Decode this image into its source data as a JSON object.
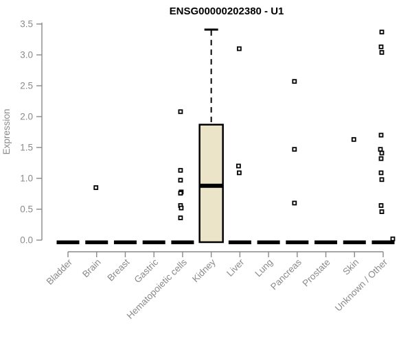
{
  "page": {
    "background": "#ffffff"
  },
  "chart_data": {
    "type": "boxplot",
    "title": "ENSG00000202380 - U1",
    "ylabel": "Expression",
    "xlabel": "",
    "ylim": [
      0.0,
      3.5
    ],
    "yticks": [
      0.0,
      0.5,
      1.0,
      1.5,
      2.0,
      2.5,
      3.0,
      3.5
    ],
    "ytick_labels": [
      "0.0",
      "0.5",
      "1.0",
      "1.5",
      "2.0",
      "2.5",
      "3.0",
      "3.5"
    ],
    "grid": false,
    "legend": "none",
    "colors": {
      "box_fill": "#ece4c9",
      "box_border": "#000000",
      "median": "#000000",
      "zero_bar": "#000000",
      "point": "#000000",
      "point_fill": "#ffffff",
      "axis": "#898989",
      "title": "#000000",
      "background": "#ffffff"
    },
    "categories": [
      {
        "label": "Bladder",
        "box": {
          "q1": 0.0,
          "median": 0.0,
          "q3": 0.0,
          "whisker_low": 0.0,
          "whisker_high": 0.0
        },
        "points": []
      },
      {
        "label": "Brain",
        "box": {
          "q1": 0.0,
          "median": 0.0,
          "q3": 0.0,
          "whisker_low": 0.0,
          "whisker_high": 0.0
        },
        "points": [
          {
            "value": 0.85,
            "dx": -1
          }
        ]
      },
      {
        "label": "Breast",
        "box": {
          "q1": 0.0,
          "median": 0.0,
          "q3": 0.0,
          "whisker_low": 0.0,
          "whisker_high": 0.0
        },
        "points": []
      },
      {
        "label": "Gastric",
        "box": {
          "q1": 0.0,
          "median": 0.0,
          "q3": 0.0,
          "whisker_low": 0.0,
          "whisker_high": 0.0
        },
        "points": []
      },
      {
        "label": "Hematopoietic cells",
        "box": {
          "q1": 0.0,
          "median": 0.0,
          "q3": 0.0,
          "whisker_low": 0.0,
          "whisker_high": 0.0
        },
        "points": [
          {
            "value": 2.08,
            "dx": -3
          },
          {
            "value": 1.13,
            "dx": -3
          },
          {
            "value": 0.97,
            "dx": -3
          },
          {
            "value": 0.78,
            "dx": -2
          },
          {
            "value": 0.76,
            "dx": -3
          },
          {
            "value": 0.56,
            "dx": -3
          },
          {
            "value": 0.52,
            "dx": -2
          },
          {
            "value": 0.36,
            "dx": -3
          }
        ]
      },
      {
        "label": "Kidney",
        "box": {
          "q1": 0.0,
          "median": 0.88,
          "q3": 1.87,
          "whisker_low": 0.0,
          "whisker_high": 3.41
        },
        "points": []
      },
      {
        "label": "Liver",
        "box": {
          "q1": 0.0,
          "median": 0.0,
          "q3": 0.0,
          "whisker_low": 0.0,
          "whisker_high": 0.0
        },
        "points": [
          {
            "value": 3.1,
            "dx": -1
          },
          {
            "value": 1.2,
            "dx": -2
          },
          {
            "value": 1.09,
            "dx": -1
          }
        ]
      },
      {
        "label": "Lung",
        "box": {
          "q1": 0.0,
          "median": 0.0,
          "q3": 0.0,
          "whisker_low": 0.0,
          "whisker_high": 0.0
        },
        "points": []
      },
      {
        "label": "Pancreas",
        "box": {
          "q1": 0.0,
          "median": 0.0,
          "q3": 0.0,
          "whisker_low": 0.0,
          "whisker_high": 0.0
        },
        "points": [
          {
            "value": 2.57,
            "dx": -4
          },
          {
            "value": 1.47,
            "dx": -4
          },
          {
            "value": 0.6,
            "dx": -4
          }
        ]
      },
      {
        "label": "Prostate",
        "box": {
          "q1": 0.0,
          "median": 0.0,
          "q3": 0.0,
          "whisker_low": 0.0,
          "whisker_high": 0.0
        },
        "points": []
      },
      {
        "label": "Skin",
        "box": {
          "q1": 0.0,
          "median": 0.0,
          "q3": 0.0,
          "whisker_low": 0.0,
          "whisker_high": 0.0
        },
        "points": [
          {
            "value": 1.63,
            "dx": -1
          }
        ]
      },
      {
        "label": "Unknown / Other",
        "box": {
          "q1": 0.0,
          "median": 0.0,
          "q3": 0.0,
          "whisker_low": 0.0,
          "whisker_high": 0.0
        },
        "points": [
          {
            "value": 3.37,
            "dx": -2
          },
          {
            "value": 3.13,
            "dx": -3
          },
          {
            "value": 3.04,
            "dx": -2
          },
          {
            "value": 1.7,
            "dx": -3
          },
          {
            "value": 1.47,
            "dx": -4
          },
          {
            "value": 1.41,
            "dx": -2
          },
          {
            "value": 1.32,
            "dx": -3
          },
          {
            "value": 1.09,
            "dx": -3
          },
          {
            "value": 0.98,
            "dx": -2
          },
          {
            "value": 0.56,
            "dx": -3
          },
          {
            "value": 0.46,
            "dx": -2
          },
          {
            "value": 0.02,
            "dx": 14
          }
        ]
      }
    ]
  }
}
